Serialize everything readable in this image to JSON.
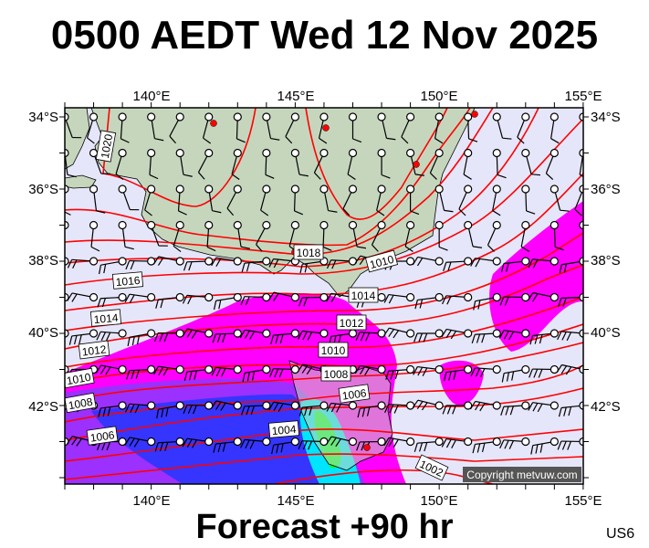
{
  "title": "0500 AEDT Wed 12 Nov 2025",
  "subtitle": "Forecast +90 hr",
  "region_code": "US6",
  "copyright": "Copyright metvuw.com",
  "axes": {
    "top_lon_labels": [
      "140°E",
      "145°E",
      "150°E",
      "155°E"
    ],
    "bottom_lon_labels": [
      "140°E",
      "145°E",
      "150°E",
      "155°E"
    ],
    "left_lat_labels": [
      "34°S",
      "36°S",
      "38°S",
      "40°S",
      "42°S"
    ],
    "right_lat_labels": [
      "34°S",
      "36°S",
      "38°S",
      "40°S",
      "42°S"
    ]
  },
  "isobar_labels": [
    "1020",
    "1018",
    "1016",
    "1014",
    "1012",
    "1010",
    "1008",
    "1006",
    "1010",
    "1014",
    "1012",
    "1010",
    "1008",
    "1006",
    "1004",
    "1002"
  ],
  "colors": {
    "isobar": "#ff0000",
    "sea": "#e6e6fa",
    "land": "#c8d8c0",
    "rain_light": "#ff00ff",
    "rain_medium": "#8a2be2",
    "rain_heavy": "#3030ff",
    "rain_very_heavy": "#00ffff",
    "rain_extreme": "#00ff00",
    "city_marker": "#ff0000"
  }
}
